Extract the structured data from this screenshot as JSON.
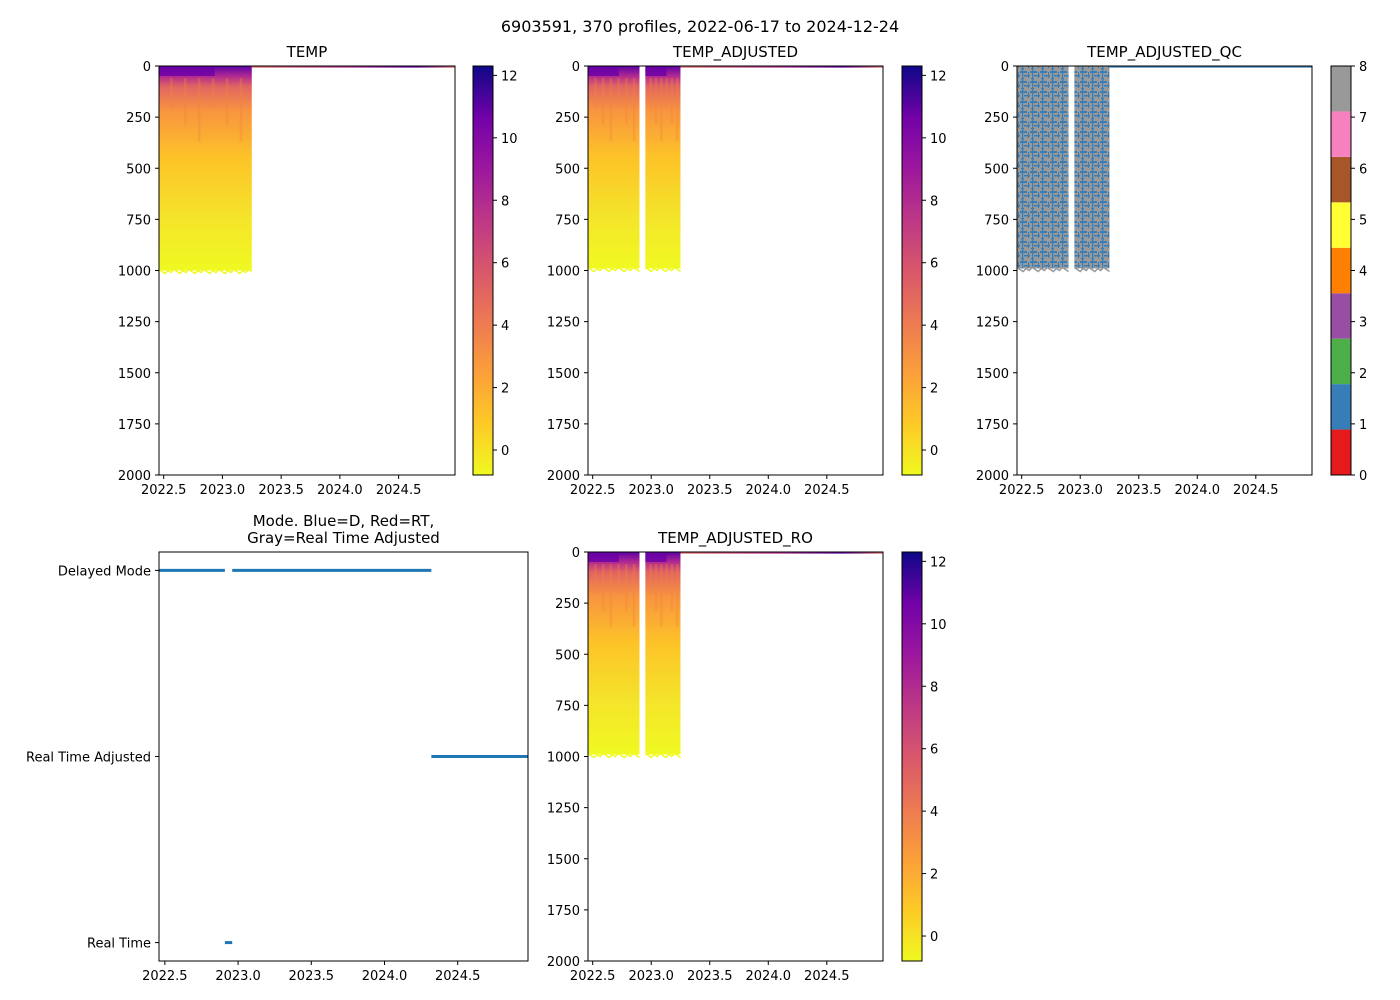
{
  "figure": {
    "title": "6903591, 370 profiles, 2022-06-17 to 2024-12-24"
  },
  "chart_data": [
    {
      "id": "temp",
      "type": "heatmap",
      "title": "TEMP",
      "xlim": [
        2022.46,
        2024.98
      ],
      "ylim": [
        2000,
        0
      ],
      "xticks": [
        2022.5,
        2023.0,
        2023.5,
        2024.0,
        2024.5
      ],
      "xtick_labels": [
        "2022.5",
        "2023.0",
        "2023.5",
        "2024.0",
        "2024.5"
      ],
      "yticks": [
        0,
        250,
        500,
        750,
        1000,
        1250,
        1500,
        1750,
        2000
      ],
      "ytick_labels": [
        "0",
        "250",
        "500",
        "750",
        "1000",
        "1250",
        "1500",
        "1750",
        "2000"
      ],
      "data_segments": [
        {
          "start": 2022.46,
          "end": 2023.25,
          "max_depth": 1000
        }
      ],
      "surface_trace": {
        "start": 2023.25,
        "end": 2024.98,
        "max_depth": 8
      },
      "colorbar": {
        "cmap": "plasma_r",
        "range": [
          -0.8,
          12.3
        ],
        "ticks": [
          0,
          2,
          4,
          6,
          8,
          10,
          12
        ],
        "tick_labels": [
          "0",
          "2",
          "4",
          "6",
          "8",
          "10",
          "12"
        ]
      }
    },
    {
      "id": "temp_adjusted",
      "type": "heatmap",
      "title": "TEMP_ADJUSTED",
      "xlim": [
        2022.46,
        2024.98
      ],
      "ylim": [
        2000,
        0
      ],
      "xticks": [
        2022.5,
        2023.0,
        2023.5,
        2024.0,
        2024.5
      ],
      "xtick_labels": [
        "2022.5",
        "2023.0",
        "2023.5",
        "2024.0",
        "2024.5"
      ],
      "yticks": [
        0,
        250,
        500,
        750,
        1000,
        1250,
        1500,
        1750,
        2000
      ],
      "ytick_labels": [
        "0",
        "250",
        "500",
        "750",
        "1000",
        "1250",
        "1500",
        "1750",
        "2000"
      ],
      "data_segments": [
        {
          "start": 2022.46,
          "end": 2022.9,
          "max_depth": 990
        },
        {
          "start": 2022.95,
          "end": 2023.25,
          "max_depth": 990
        }
      ],
      "surface_trace": {
        "start": 2023.25,
        "end": 2024.98,
        "max_depth": 8
      },
      "colorbar": {
        "cmap": "plasma_r",
        "range": [
          -0.8,
          12.3
        ],
        "ticks": [
          0,
          2,
          4,
          6,
          8,
          10,
          12
        ],
        "tick_labels": [
          "0",
          "2",
          "4",
          "6",
          "8",
          "10",
          "12"
        ]
      }
    },
    {
      "id": "temp_adjusted_qc",
      "type": "heatmap",
      "title": "TEMP_ADJUSTED_QC",
      "xlim": [
        2022.46,
        2024.98
      ],
      "ylim": [
        2000,
        0
      ],
      "xticks": [
        2022.5,
        2023.0,
        2023.5,
        2024.0,
        2024.5
      ],
      "xtick_labels": [
        "2022.5",
        "2023.0",
        "2023.5",
        "2024.0",
        "2024.5"
      ],
      "yticks": [
        0,
        250,
        500,
        750,
        1000,
        1250,
        1500,
        1750,
        2000
      ],
      "ytick_labels": [
        "0",
        "250",
        "500",
        "750",
        "1000",
        "1250",
        "1500",
        "1750",
        "2000"
      ],
      "data_segments": [
        {
          "start": 2022.46,
          "end": 2022.9,
          "max_depth": 990
        },
        {
          "start": 2022.95,
          "end": 2023.25,
          "max_depth": 990
        }
      ],
      "surface_trace": {
        "start": 2023.25,
        "end": 2024.98,
        "max_depth": 8
      },
      "qc_main_values": [
        1,
        8
      ],
      "colorbar": {
        "cmap": "qc",
        "range": [
          0,
          8
        ],
        "colors": [
          "#e41a1c",
          "#377eb8",
          "#4daf4a",
          "#984ea3",
          "#ff7f00",
          "#ffff33",
          "#a65628",
          "#f781bf",
          "#999999"
        ],
        "ticks": [
          0,
          1,
          2,
          3,
          4,
          5,
          6,
          7,
          8
        ],
        "tick_labels": [
          "0",
          "1",
          "2",
          "3",
          "4",
          "5",
          "6",
          "7",
          "8"
        ]
      }
    },
    {
      "id": "mode",
      "type": "line",
      "title": "Mode. Blue=D, Red=RT,\nGray=Real Time Adjusted",
      "xlim": [
        2022.46,
        2024.98
      ],
      "xticks": [
        2022.5,
        2023.0,
        2023.5,
        2024.0,
        2024.5
      ],
      "xtick_labels": [
        "2022.5",
        "2023.0",
        "2023.5",
        "2024.0",
        "2024.5"
      ],
      "categories": [
        "Delayed Mode",
        "Real Time Adjusted",
        "Real Time"
      ],
      "series": [
        {
          "name": "Delayed Mode",
          "segments": [
            [
              2022.46,
              2022.91
            ],
            [
              2022.96,
              2024.32
            ]
          ]
        },
        {
          "name": "Real Time Adjusted",
          "segments": [
            [
              2024.32,
              2024.98
            ]
          ]
        },
        {
          "name": "Real Time",
          "segments": [
            [
              2022.91,
              2022.96
            ]
          ]
        }
      ],
      "line_color": "#1f77b4"
    },
    {
      "id": "temp_adjusted_ro",
      "type": "heatmap",
      "title": "TEMP_ADJUSTED_RO",
      "xlim": [
        2022.46,
        2024.98
      ],
      "ylim": [
        2000,
        0
      ],
      "xticks": [
        2022.5,
        2023.0,
        2023.5,
        2024.0,
        2024.5
      ],
      "xtick_labels": [
        "2022.5",
        "2023.0",
        "2023.5",
        "2024.0",
        "2024.5"
      ],
      "yticks": [
        0,
        250,
        500,
        750,
        1000,
        1250,
        1500,
        1750,
        2000
      ],
      "ytick_labels": [
        "0",
        "250",
        "500",
        "750",
        "1000",
        "1250",
        "1500",
        "1750",
        "2000"
      ],
      "data_segments": [
        {
          "start": 2022.46,
          "end": 2022.9,
          "max_depth": 990
        },
        {
          "start": 2022.95,
          "end": 2023.25,
          "max_depth": 990
        }
      ],
      "surface_trace": {
        "start": 2023.25,
        "end": 2024.98,
        "max_depth": 8
      },
      "colorbar": {
        "cmap": "plasma_r",
        "range": [
          -0.8,
          12.3
        ],
        "ticks": [
          0,
          2,
          4,
          6,
          8,
          10,
          12
        ],
        "tick_labels": [
          "0",
          "2",
          "4",
          "6",
          "8",
          "10",
          "12"
        ]
      }
    }
  ]
}
